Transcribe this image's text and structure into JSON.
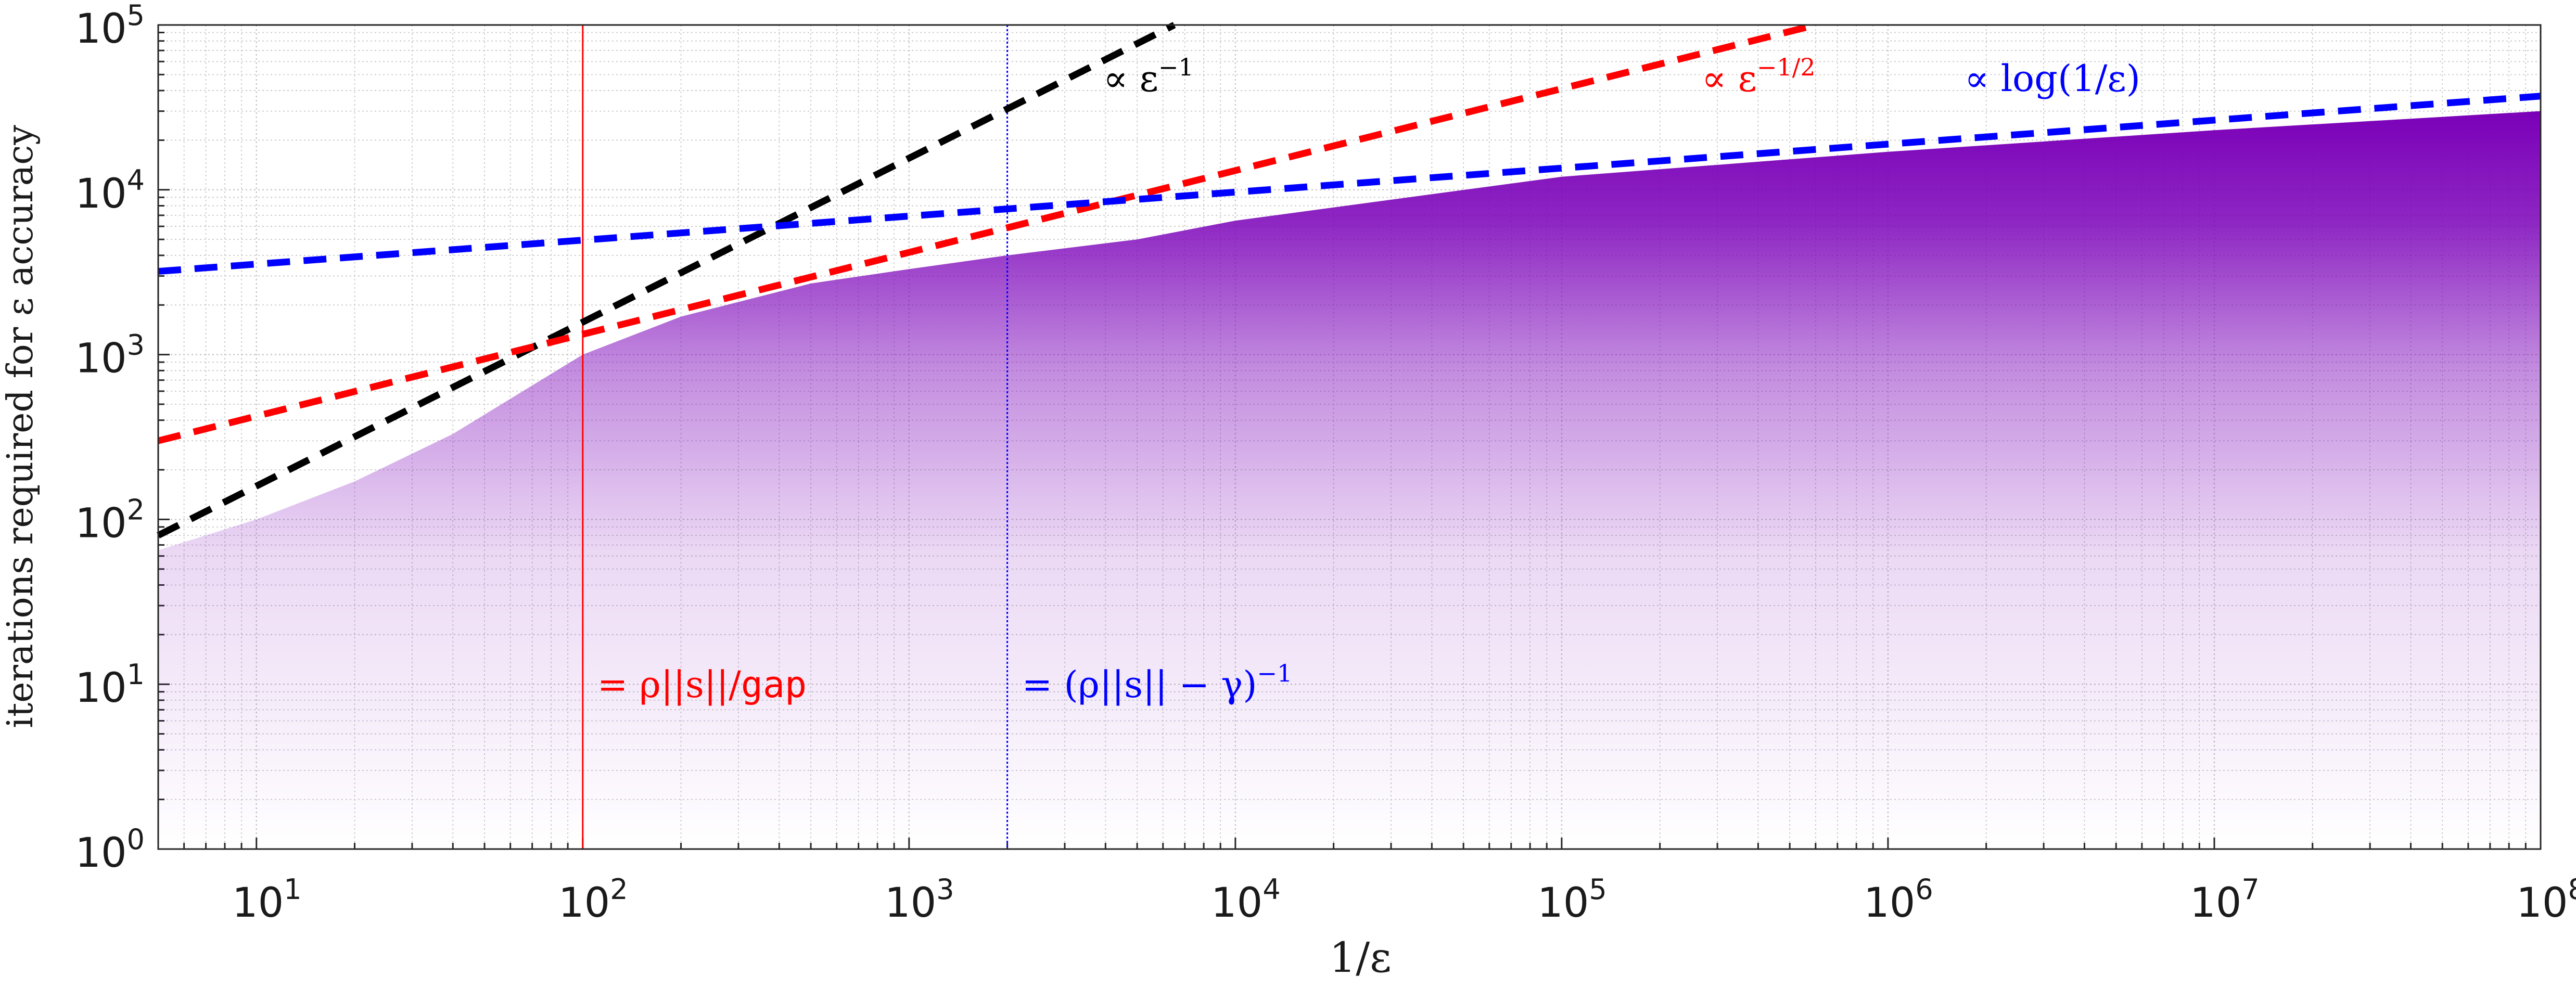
{
  "chart_data": {
    "type": "line",
    "title": "",
    "xlabel": "1/ε",
    "ylabel": "iterations required for ε accuracy",
    "xscale": "log",
    "yscale": "log",
    "xlim": [
      5,
      100000000
    ],
    "ylim": [
      1,
      100000
    ],
    "grid": true,
    "x_ticks": [
      {
        "value": 10,
        "base": "10",
        "exp": "1"
      },
      {
        "value": 100,
        "base": "10",
        "exp": "2"
      },
      {
        "value": 1000,
        "base": "10",
        "exp": "3"
      },
      {
        "value": 10000,
        "base": "10",
        "exp": "4"
      },
      {
        "value": 100000,
        "base": "10",
        "exp": "5"
      },
      {
        "value": 1000000,
        "base": "10",
        "exp": "6"
      },
      {
        "value": 10000000,
        "base": "10",
        "exp": "7"
      },
      {
        "value": 100000000,
        "base": "10",
        "exp": "8"
      }
    ],
    "y_ticks": [
      {
        "value": 1,
        "base": "10",
        "exp": "0"
      },
      {
        "value": 10,
        "base": "10",
        "exp": "1"
      },
      {
        "value": 100,
        "base": "10",
        "exp": "2"
      },
      {
        "value": 1000,
        "base": "10",
        "exp": "3"
      },
      {
        "value": 10000,
        "base": "10",
        "exp": "4"
      },
      {
        "value": 100000,
        "base": "10",
        "exp": "5"
      }
    ],
    "colors": {
      "band": "#7a00b8",
      "black": "#000000",
      "red": "#ff0000",
      "blue": "#0000ff",
      "grid": "#c8c8c8"
    },
    "band_upper": {
      "x": [
        5,
        10,
        20,
        40,
        70,
        100,
        200,
        500,
        1000,
        2000,
        5000,
        10000,
        100000,
        1000000,
        10000000,
        100000000
      ],
      "y": [
        65,
        100,
        170,
        330,
        650,
        1000,
        1700,
        2700,
        3300,
        4000,
        5000,
        6500,
        12000,
        17000,
        23000,
        30000
      ]
    },
    "series": [
      {
        "label": "∝ ε^{-1}",
        "label_main": "∝ ε",
        "label_exp": "−1",
        "color": "#000000",
        "dash": "dashed",
        "x": [
          5,
          6500
        ],
        "y": [
          80,
          100000
        ]
      },
      {
        "label": "∝ ε^{-1/2}",
        "label_main": "∝ ε",
        "label_exp": "−1/2",
        "color": "#ff0000",
        "dash": "dashed",
        "x": [
          5,
          600000
        ],
        "y": [
          300,
          100000
        ]
      },
      {
        "label": "∝ log(1/ε)",
        "label_main": "∝ log(1/ε)",
        "label_exp": "",
        "color": "#0000ff",
        "dash": "dashed",
        "x": [
          5,
          100000000
        ],
        "y": [
          3200,
          37000
        ]
      }
    ],
    "vlines": [
      {
        "x": 100,
        "color": "#ff0000",
        "style": "solid",
        "label_main": "= ρ||s||/",
        "label_mono": "gap",
        "label_exp": ""
      },
      {
        "x": 2000,
        "color": "#0000ff",
        "style": "dotted",
        "label_main": "= (ρ||s|| − γ)",
        "label_mono": "",
        "label_exp": "−1"
      }
    ]
  }
}
